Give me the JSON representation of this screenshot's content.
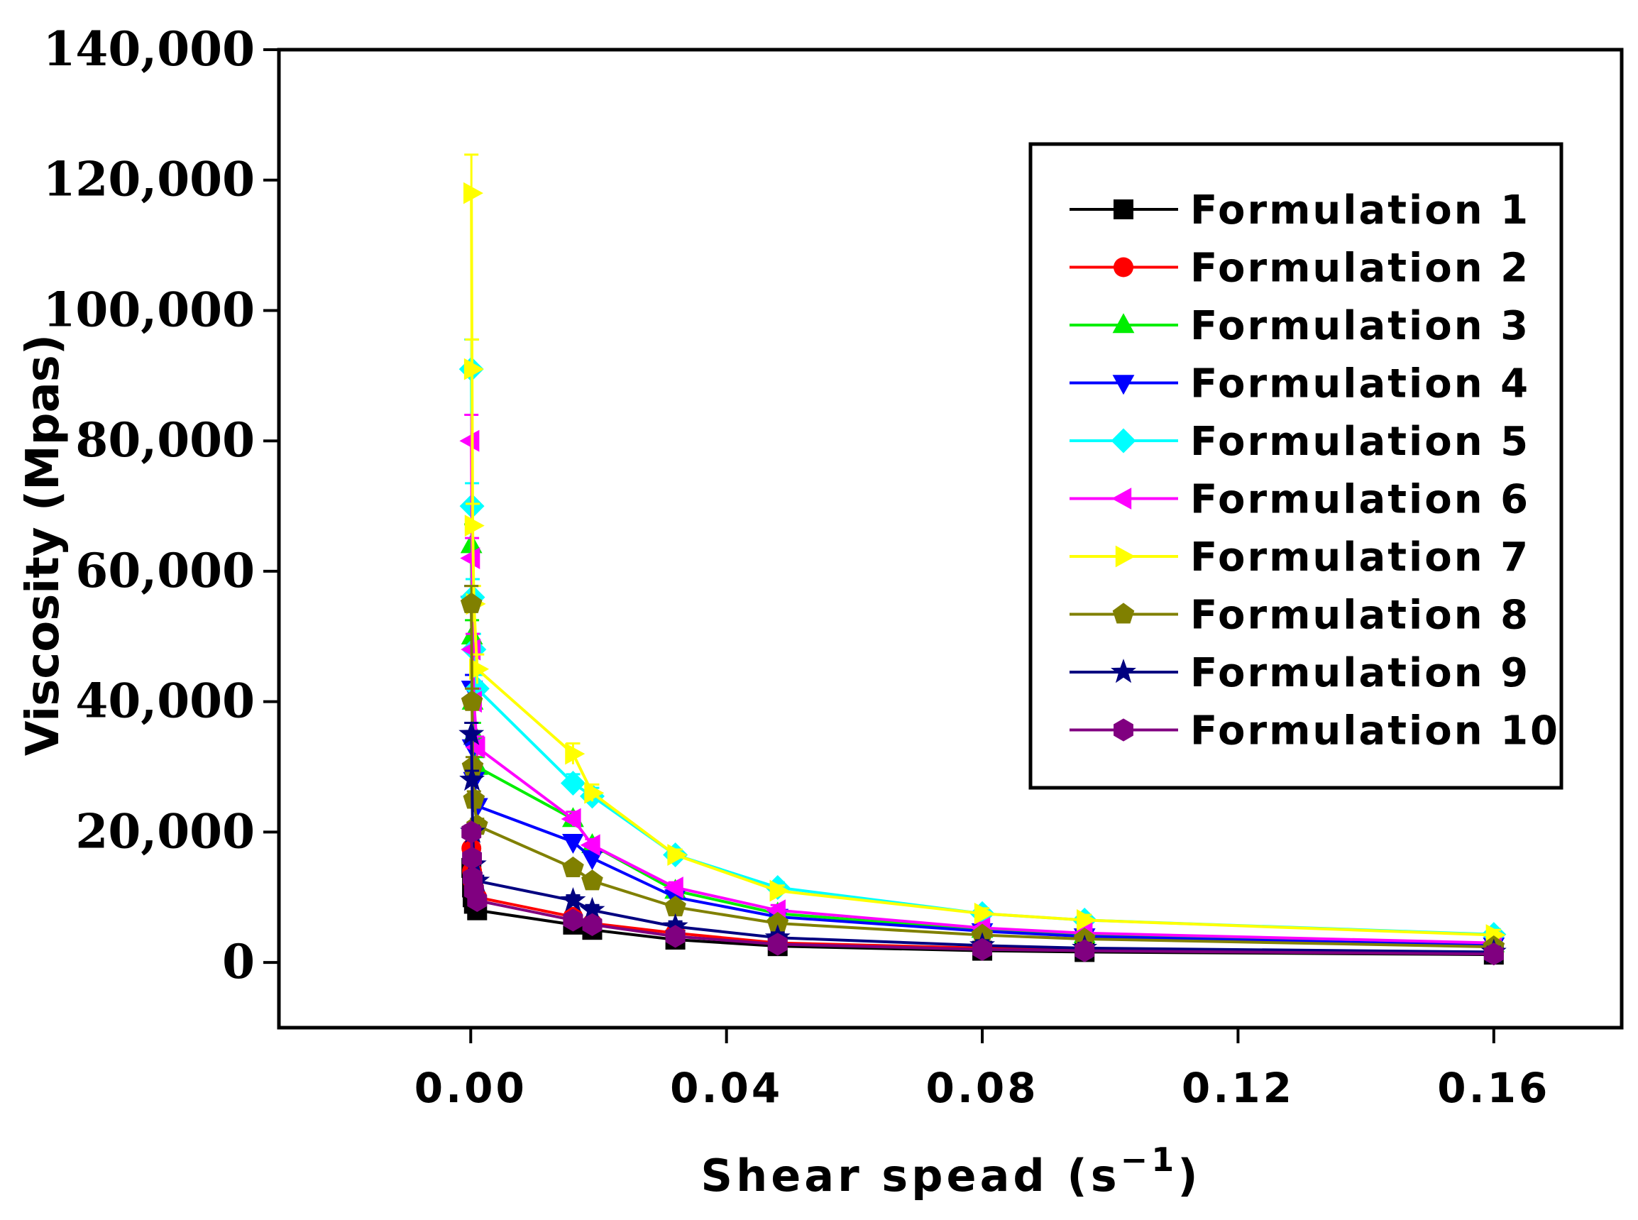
{
  "chart_data": {
    "type": "line",
    "title": "",
    "xlabel": "Shear spead",
    "xlabel_unit_base": "s",
    "xlabel_unit_exp": "−1",
    "ylabel": "Viscosity (Mpas)",
    "xlim": [
      -0.03,
      0.18
    ],
    "ylim": [
      -10000,
      140000
    ],
    "x_ticks": [
      0.0,
      0.04,
      0.08,
      0.12,
      0.16
    ],
    "x_tick_labels": [
      "0.00",
      "0.04",
      "0.08",
      "0.12",
      "0.16"
    ],
    "y_ticks": [
      0,
      20000,
      40000,
      60000,
      80000,
      100000,
      120000,
      140000
    ],
    "y_tick_labels": [
      "0",
      "20,000",
      "40,000",
      "60,000",
      "80,000",
      "100,000",
      "120,000",
      "140,000"
    ],
    "grid": false,
    "legend_position": "top-right",
    "x": [
      0.0001,
      0.0002,
      0.0003,
      0.0005,
      0.001,
      0.016,
      0.019,
      0.032,
      0.048,
      0.08,
      0.096,
      0.16
    ],
    "series": [
      {
        "name": "Formulation 1",
        "color": "#000000",
        "marker": "square",
        "values": [
          14500,
          11500,
          10000,
          9000,
          8000,
          5800,
          5000,
          3500,
          2500,
          1800,
          1600,
          1200
        ]
      },
      {
        "name": "Formulation 2",
        "color": "#ff0000",
        "marker": "circle",
        "values": [
          17500,
          14000,
          12500,
          11500,
          10000,
          7000,
          6000,
          4500,
          3000,
          2200,
          1900,
          1400
        ]
      },
      {
        "name": "Formulation 3",
        "color": "#00ee00",
        "marker": "triangle-up",
        "values": [
          64000,
          50000,
          40000,
          35000,
          30000,
          22000,
          18000,
          11000,
          7500,
          5000,
          4200,
          2800
        ]
      },
      {
        "name": "Formulation 4",
        "color": "#0000ff",
        "marker": "triangle-down",
        "values": [
          55000,
          42000,
          33000,
          28000,
          24000,
          18500,
          16000,
          10000,
          7000,
          4800,
          4000,
          2600
        ]
      },
      {
        "name": "Formulation 5",
        "color": "#00ffff",
        "marker": "diamond",
        "values": [
          91000,
          70000,
          56000,
          48000,
          42000,
          27500,
          25500,
          16500,
          11500,
          7500,
          6500,
          4300
        ]
      },
      {
        "name": "Formulation 6",
        "color": "#ff00ff",
        "marker": "triangle-left",
        "values": [
          80000,
          62000,
          48000,
          40000,
          33000,
          22000,
          18000,
          11500,
          8000,
          5300,
          4500,
          3000
        ]
      },
      {
        "name": "Formulation 7",
        "color": "#ffff00",
        "marker": "triangle-right",
        "values": [
          118000,
          91000,
          67000,
          55000,
          45000,
          32000,
          26000,
          16500,
          11000,
          7500,
          6500,
          4200
        ]
      },
      {
        "name": "Formulation 8",
        "color": "#808000",
        "marker": "pentagon",
        "values": [
          55000,
          40000,
          30000,
          25000,
          21000,
          14500,
          12500,
          8500,
          6000,
          4200,
          3600,
          2400
        ]
      },
      {
        "name": "Formulation 9",
        "color": "#000080",
        "marker": "star",
        "values": [
          35000,
          28000,
          20000,
          15000,
          12500,
          9500,
          8000,
          5500,
          3800,
          2600,
          2200,
          1600
        ]
      },
      {
        "name": "Formulation 10",
        "color": "#800080",
        "marker": "hexagon",
        "values": [
          20000,
          16000,
          13000,
          11000,
          9500,
          6500,
          5800,
          4000,
          2800,
          2000,
          1800,
          1300
        ]
      }
    ]
  }
}
